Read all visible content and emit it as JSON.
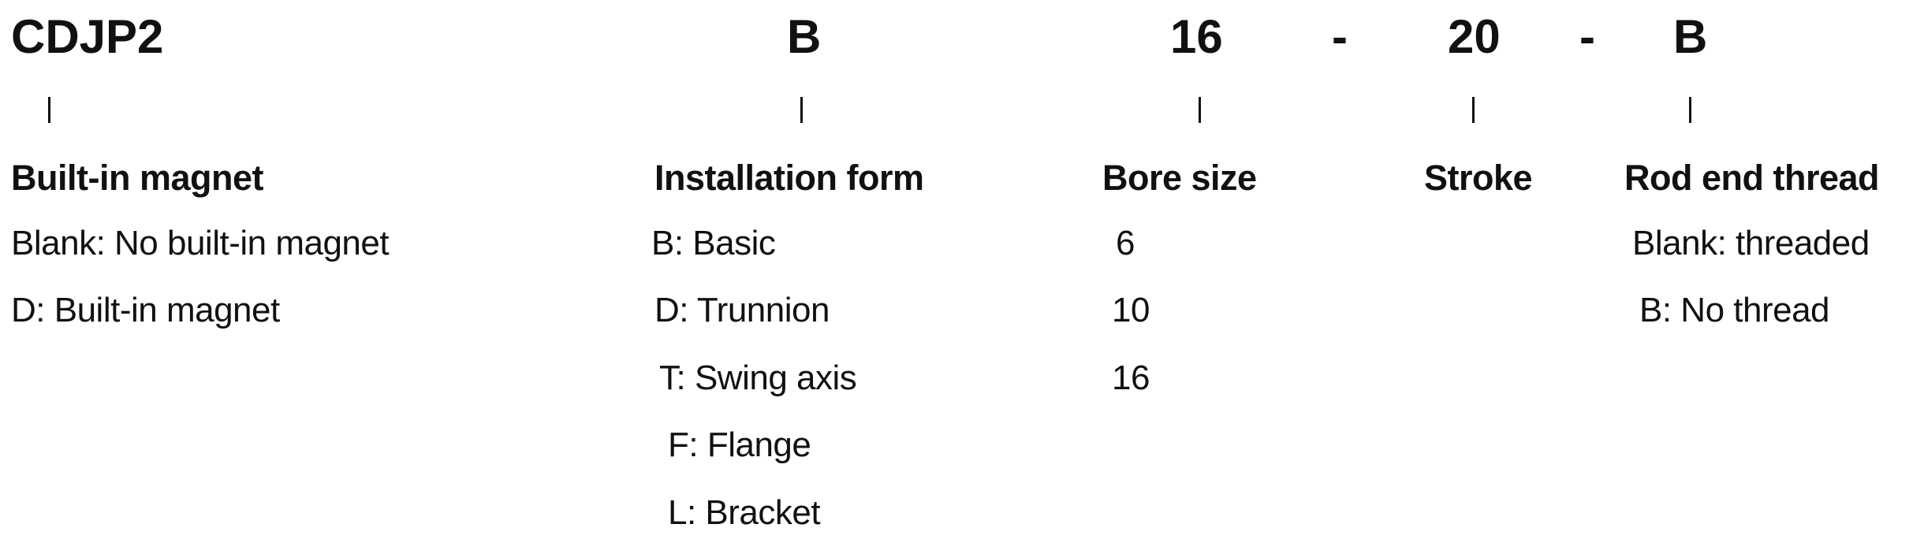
{
  "code": {
    "series": "CDJP2",
    "installation": "B",
    "bore": "16",
    "sep1": "-",
    "stroke": "20",
    "sep2": "-",
    "rod_end": "B"
  },
  "sections": {
    "magnet": {
      "title": "Built-in magnet",
      "items": [
        "Blank: No built-in magnet",
        "D: Built-in magnet"
      ]
    },
    "installation": {
      "title": "Installation form",
      "items": [
        "B: Basic",
        "D: Trunnion",
        "T: Swing axis",
        "F: Flange",
        "L: Bracket"
      ]
    },
    "bore": {
      "title": "Bore size",
      "items": [
        "6",
        "10",
        "16"
      ]
    },
    "stroke": {
      "title": "Stroke",
      "items": []
    },
    "rod_end": {
      "title": "Rod end thread",
      "items": [
        "Blank: threaded",
        "B: No thread"
      ]
    }
  }
}
